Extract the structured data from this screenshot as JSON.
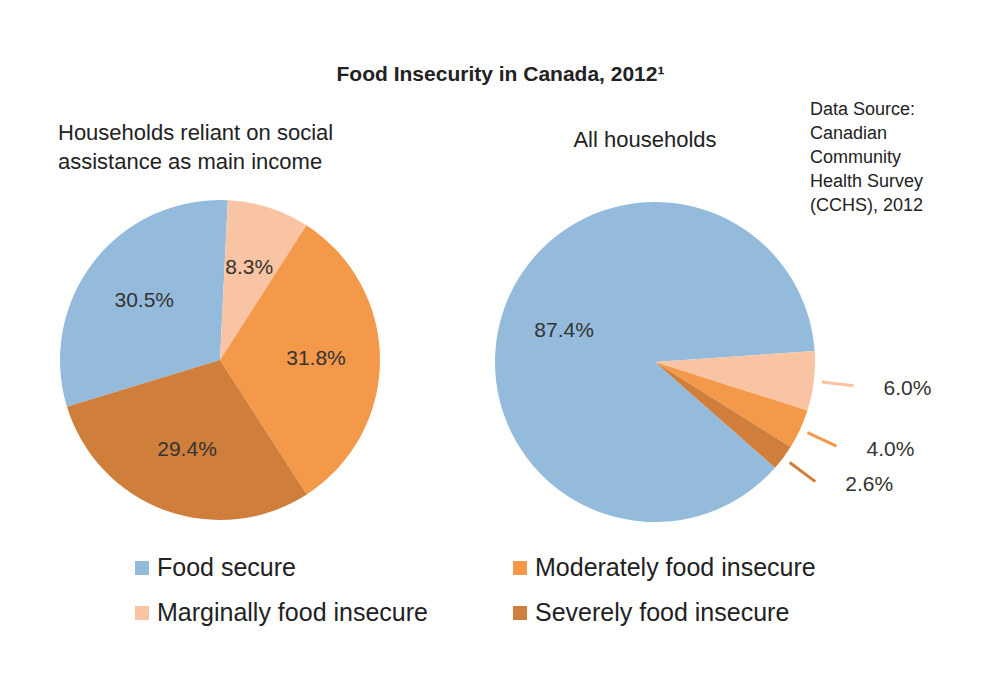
{
  "title": "Food Insecurity in Canada, 2012¹",
  "annotation": "Data Source: Canadian Community Health Survey (CCHS), 2012",
  "legend": "bottom",
  "chart_data": [
    {
      "type": "pie",
      "title": "Households reliant on social assistance as main income",
      "categories": [
        "Food secure",
        "Marginally food insecure",
        "Moderately food insecure",
        "Severely food insecure"
      ],
      "values": [
        30.5,
        8.3,
        31.8,
        29.4
      ],
      "value_labels": [
        "30.5%",
        "8.3%",
        "31.8%",
        "29.4%"
      ],
      "colors": [
        "#94bbdb",
        "#f9c4a3",
        "#f4994a",
        "#d07e3b"
      ],
      "data_labels": true
    },
    {
      "type": "pie",
      "title": "All households",
      "categories": [
        "Food secure",
        "Marginally food insecure",
        "Moderately food insecure",
        "Severely food insecure"
      ],
      "values": [
        87.4,
        6.0,
        4.0,
        2.6
      ],
      "value_labels": [
        "87.4%",
        "6.0%",
        "4.0%",
        "2.6%"
      ],
      "colors": [
        "#94bbdb",
        "#f9c4a3",
        "#f4994a",
        "#d07e3b"
      ],
      "data_labels": true
    }
  ]
}
